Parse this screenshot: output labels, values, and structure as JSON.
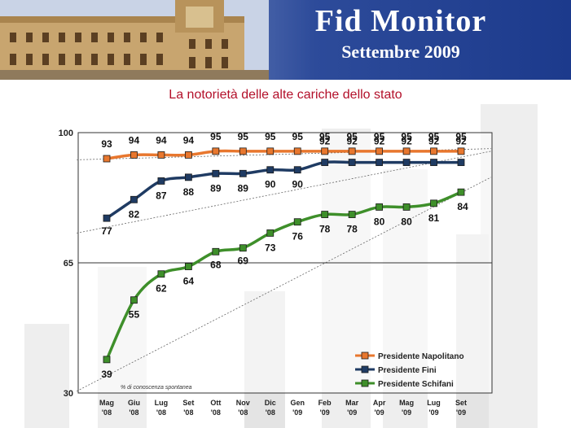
{
  "header": {
    "brand_line1": "Fid Monitor",
    "brand_line2": "Settembre 2009"
  },
  "colors": {
    "napolitano": "#e8772e",
    "fini": "#1f3b63",
    "schifani": "#3e8f2a",
    "title": "#b3102a"
  },
  "chart_data": {
    "type": "line",
    "title": "La notorietà delle alte cariche dello stato",
    "note": "% di conoscenza spontanea",
    "ylim": [
      30,
      100
    ],
    "yticks": [
      30,
      65,
      100
    ],
    "categories": [
      "Mag '08",
      "Giu '08",
      "Lug '08",
      "Set '08",
      "Ott '08",
      "Nov '08",
      "Dic '08",
      "Gen '09",
      "Feb '09",
      "Mar '09",
      "Apr '09",
      "Mag '09",
      "Lug '09",
      "Set '09"
    ],
    "x_labels": [
      [
        "Mag",
        "'08"
      ],
      [
        "Giu",
        "'08"
      ],
      [
        "Lug",
        "'08"
      ],
      [
        "Set",
        "'08"
      ],
      [
        "Ott",
        "'08"
      ],
      [
        "Nov",
        "'08"
      ],
      [
        "Dic",
        "'08"
      ],
      [
        "Gen",
        "'09"
      ],
      [
        "Feb",
        "'09"
      ],
      [
        "Mar",
        "'09"
      ],
      [
        "Apr",
        "'09"
      ],
      [
        "Mag",
        "'09"
      ],
      [
        "Lug",
        "'09"
      ],
      [
        "Set",
        "'09"
      ]
    ],
    "legend_position": "bottom-right",
    "series": [
      {
        "name": "Presidente Napolitano",
        "key": "napolitano",
        "values": [
          93,
          94,
          94,
          94,
          95,
          95,
          95,
          95,
          95,
          95,
          95,
          95,
          95,
          95
        ]
      },
      {
        "name": "Presidente Fini",
        "key": "fini",
        "values": [
          77,
          82,
          87,
          88,
          89,
          89,
          90,
          90,
          92,
          92,
          92,
          92,
          92,
          92
        ]
      },
      {
        "name": "Presidente Schifani",
        "key": "schifani",
        "values": [
          39,
          55,
          62,
          64,
          68,
          69,
          73,
          76,
          78,
          78,
          80,
          80,
          81,
          84
        ]
      }
    ]
  }
}
